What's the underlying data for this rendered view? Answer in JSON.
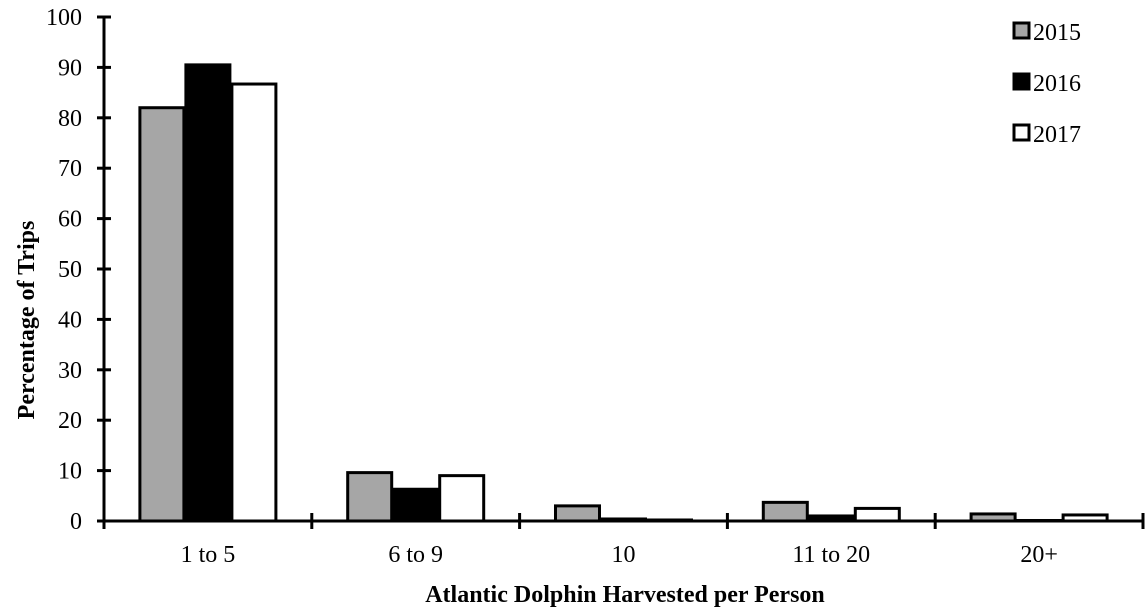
{
  "chart_data": {
    "type": "bar",
    "title": "",
    "xlabel": "Atlantic Dolphin Harvested per Person",
    "ylabel": "Percentage of Trips",
    "ylim": [
      0,
      100
    ],
    "yticks": [
      "0",
      "10",
      "20",
      "30",
      "40",
      "50",
      "60",
      "70",
      "80",
      "90",
      "100"
    ],
    "categories": [
      "1 to 5",
      "6 to 9",
      "10",
      "11 to 20",
      "20+"
    ],
    "legend_position": "top-right",
    "grid": false,
    "series": [
      {
        "name": "2015",
        "color": "#a6a6a6",
        "values": [
          82.0,
          9.6,
          3.0,
          3.7,
          1.4
        ]
      },
      {
        "name": "2016",
        "color": "#000000",
        "values": [
          90.5,
          6.3,
          0.4,
          1.0,
          0.1
        ]
      },
      {
        "name": "2017",
        "color": "#ffffff",
        "values": [
          86.7,
          9.0,
          0.2,
          2.5,
          1.2
        ]
      }
    ]
  }
}
